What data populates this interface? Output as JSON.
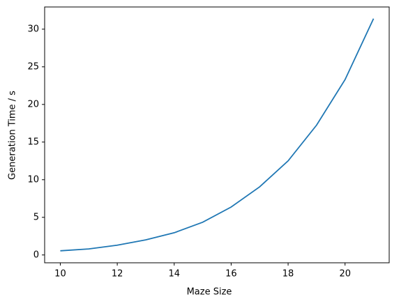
{
  "chart_data": {
    "type": "line",
    "x_label": "Maze Size",
    "y_label": "Generation Time / s",
    "x": [
      10,
      11,
      12,
      13,
      14,
      15,
      16,
      17,
      18,
      19,
      20,
      21
    ],
    "series": [
      {
        "name": "Generation Time",
        "color": "#1f77b4",
        "values": [
          0.55,
          0.8,
          1.3,
          2.0,
          2.95,
          4.35,
          6.37,
          9.05,
          12.5,
          17.25,
          23.3,
          31.4
        ]
      }
    ],
    "xlim": [
      9.45,
      21.55
    ],
    "xticks": [
      10,
      12,
      14,
      16,
      18,
      20
    ],
    "ylim": [
      -1.04,
      32.95
    ],
    "yticks": [
      0,
      5,
      10,
      15,
      20,
      25,
      30
    ]
  }
}
